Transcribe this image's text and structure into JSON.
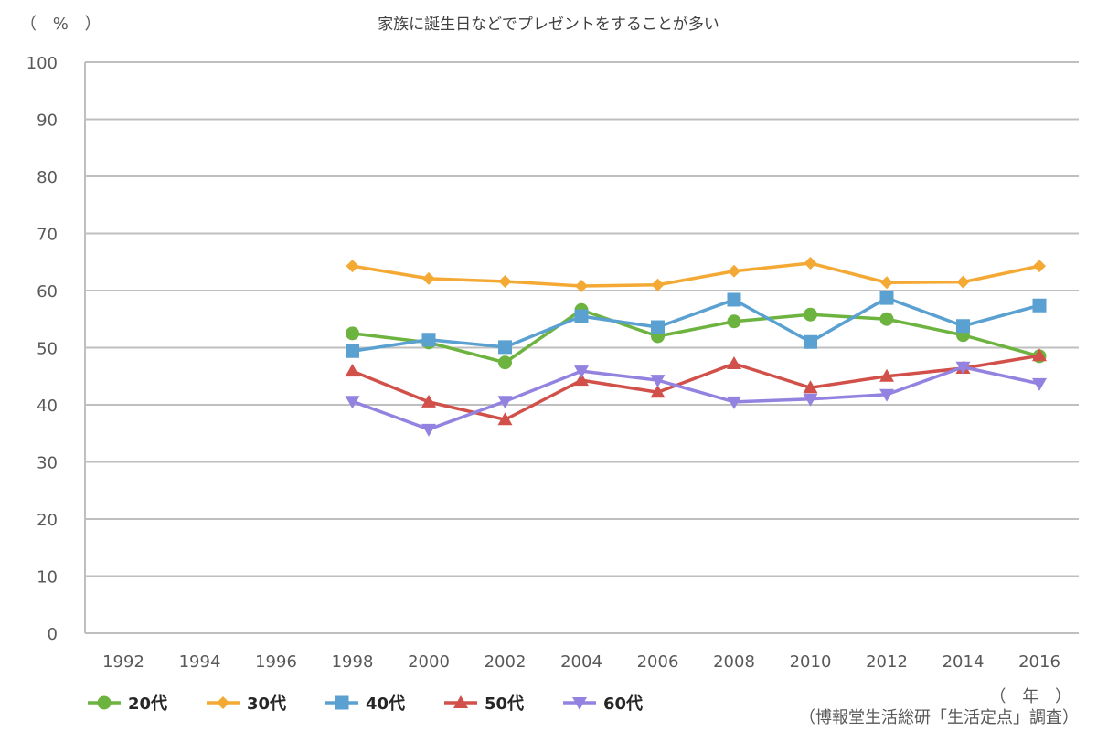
{
  "chart_data": {
    "type": "line",
    "title": "家族に誕生日などでプレゼントをすることが多い",
    "ylabel": "（ % ）",
    "xlabel": "（ 年 ）",
    "source": "（博報堂生活総研「生活定点」調査）",
    "ylim": [
      0,
      100
    ],
    "yticks": [
      "0",
      "10",
      "20",
      "30",
      "40",
      "50",
      "60",
      "70",
      "80",
      "90",
      "100"
    ],
    "categories": [
      "1992",
      "1994",
      "1996",
      "1998",
      "2000",
      "2002",
      "2004",
      "2006",
      "2008",
      "2010",
      "2012",
      "2014",
      "2016"
    ],
    "grid": true,
    "legend_position": "bottom-left",
    "series": [
      {
        "name": "20代",
        "color": "#6db33f",
        "marker": "circle",
        "values": [
          null,
          null,
          null,
          52.5,
          50.9,
          47.4,
          56.6,
          52.0,
          54.6,
          55.8,
          55.0,
          52.2,
          48.5
        ]
      },
      {
        "name": "30代",
        "color": "#f4a934",
        "marker": "diamond",
        "values": [
          null,
          null,
          null,
          64.3,
          62.1,
          61.6,
          60.8,
          61.0,
          63.4,
          64.8,
          61.4,
          61.5,
          64.3
        ]
      },
      {
        "name": "40代",
        "color": "#5aa0d0",
        "marker": "square",
        "values": [
          null,
          null,
          null,
          49.4,
          51.4,
          50.1,
          55.5,
          53.6,
          58.4,
          51.0,
          58.7,
          53.8,
          57.4
        ]
      },
      {
        "name": "50代",
        "color": "#d2504a",
        "marker": "triangle-up",
        "values": [
          null,
          null,
          null,
          45.9,
          40.5,
          37.4,
          44.3,
          42.2,
          47.2,
          43.0,
          45.0,
          46.4,
          48.6
        ]
      },
      {
        "name": "60代",
        "color": "#9482e0",
        "marker": "triangle-down",
        "values": [
          null,
          null,
          null,
          40.6,
          35.7,
          40.6,
          45.9,
          44.3,
          40.5,
          41.0,
          41.8,
          46.6,
          43.7
        ]
      }
    ]
  }
}
